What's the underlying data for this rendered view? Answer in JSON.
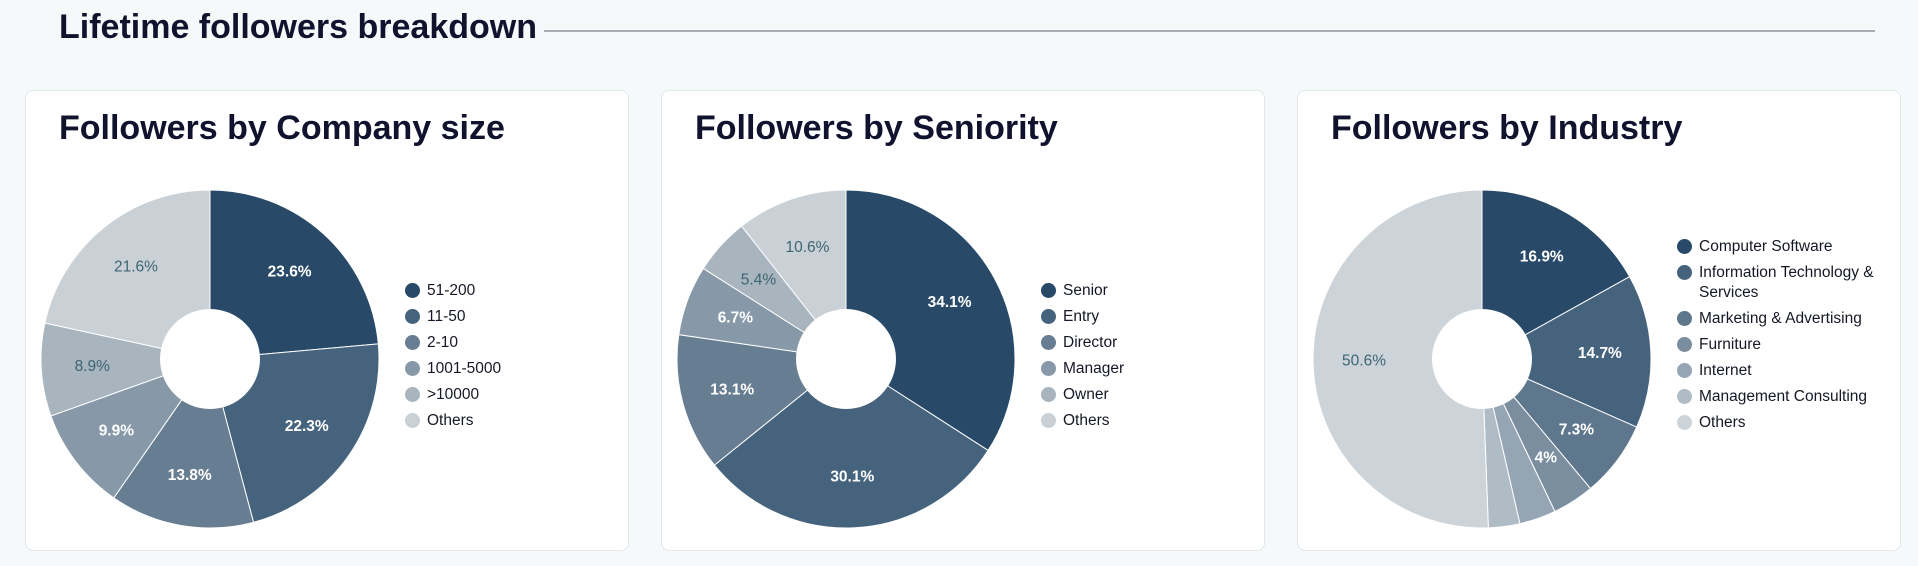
{
  "section": {
    "title": "Lifetime followers breakdown"
  },
  "chart_data": [
    {
      "type": "pie",
      "donut": true,
      "title": "Followers by Company size",
      "legend_position": "right",
      "slices": [
        {
          "label": "51-200",
          "value": 23.6,
          "display": "23.6%",
          "color": "#284a68"
        },
        {
          "label": "11-50",
          "value": 22.3,
          "display": "22.3%",
          "color": "#46637d"
        },
        {
          "label": "2-10",
          "value": 13.8,
          "display": "13.8%",
          "color": "#677d91"
        },
        {
          "label": "1001-5000",
          "value": 9.9,
          "display": "9.9%",
          "color": "#8799a8"
        },
        {
          "label": ">10000",
          "value": 8.9,
          "display": "8.9%",
          "color": "#a8b4be"
        },
        {
          "label": "Others",
          "value": 21.6,
          "display": "21.6%",
          "color": "#c9d0d6"
        }
      ]
    },
    {
      "type": "pie",
      "donut": true,
      "title": "Followers by Seniority",
      "legend_position": "right",
      "slices": [
        {
          "label": "Senior",
          "value": 34.1,
          "display": "34.1%",
          "color": "#284a68"
        },
        {
          "label": "Entry",
          "value": 30.1,
          "display": "30.1%",
          "color": "#46637d"
        },
        {
          "label": "Director",
          "value": 13.1,
          "display": "13.1%",
          "color": "#677d91"
        },
        {
          "label": "Manager",
          "value": 6.7,
          "display": "6.7%",
          "color": "#8799a8"
        },
        {
          "label": "Owner",
          "value": 5.4,
          "display": "5.4%",
          "color": "#a8b4be"
        },
        {
          "label": "Others",
          "value": 10.6,
          "display": "10.6%",
          "color": "#c9d0d6"
        }
      ]
    },
    {
      "type": "pie",
      "donut": true,
      "title": "Followers by Industry",
      "legend_position": "right",
      "slices": [
        {
          "label": "Computer Software",
          "value": 16.9,
          "display": "16.9%",
          "color": "#284a68"
        },
        {
          "label": "Information Technology & Services",
          "value": 14.7,
          "display": "14.7%",
          "color": "#46637d"
        },
        {
          "label": "Marketing & Advertising",
          "value": 7.3,
          "display": "7.3%",
          "color": "#5f778c"
        },
        {
          "label": "Furniture",
          "value": 4,
          "display": "4%",
          "color": "#7a8ea0"
        },
        {
          "label": "Internet",
          "value": 3.5,
          "display": "",
          "color": "#95a5b3"
        },
        {
          "label": "Management Consulting",
          "value": 3,
          "display": "",
          "color": "#afbcc6"
        },
        {
          "label": "Others",
          "value": 50.6,
          "display": "50.6%",
          "color": "#cdd4d9"
        }
      ]
    }
  ]
}
